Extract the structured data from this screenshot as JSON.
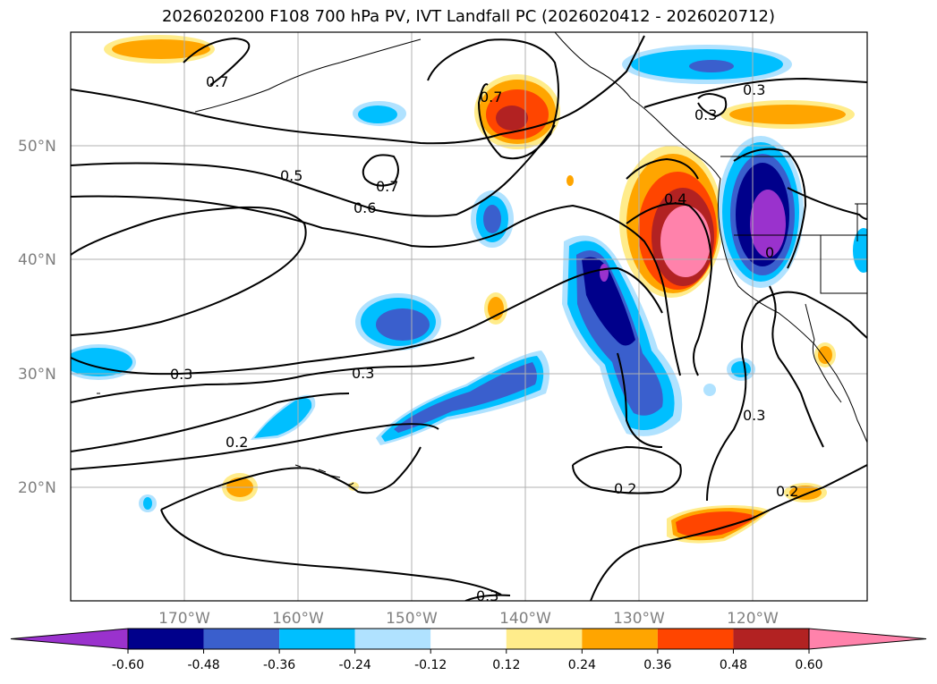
{
  "title": "2026020200 F108 700 hPa PV, IVT Landfall PC (2026020412 - 2026020712)",
  "lat_labels": [
    "50°N",
    "40°N",
    "30°N",
    "20°N"
  ],
  "lon_labels": [
    "170°W",
    "160°W",
    "150°W",
    "140°W",
    "130°W",
    "120°W"
  ],
  "contour_labels": [
    "0.7",
    "0.7",
    "0.7",
    "0.3",
    "0.5",
    "0.6",
    "0.4",
    "0",
    "0.3",
    "0.3",
    "0.3",
    "0.2",
    "0.3",
    "0.2",
    "0.2",
    "0.3"
  ],
  "colorbar": {
    "ticks": [
      "-0.60",
      "-0.48",
      "-0.36",
      "-0.24",
      "-0.12",
      "0.12",
      "0.24",
      "0.36",
      "0.48",
      "0.60"
    ],
    "colors": [
      "#9a32cd",
      "#00008b",
      "#3a5fcd",
      "#00bfff",
      "#b0e2ff",
      "#ffffff",
      "#ffec8b",
      "#ffa500",
      "#ff4500",
      "#b22222",
      "#ff82ab"
    ]
  }
}
